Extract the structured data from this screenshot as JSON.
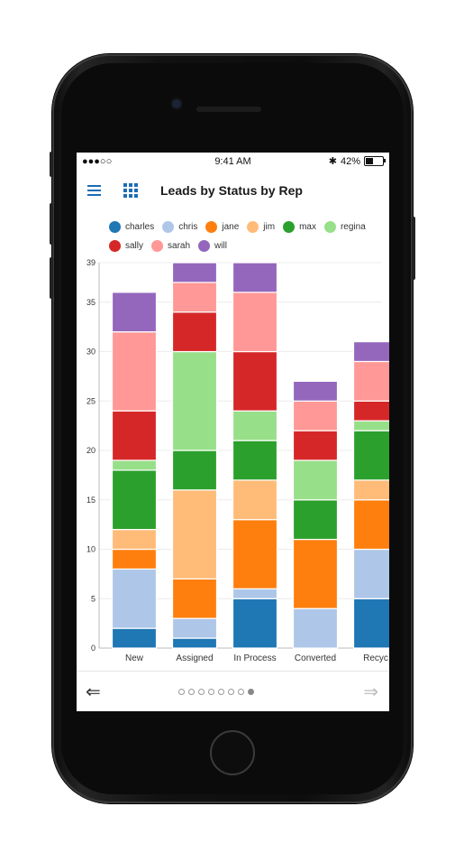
{
  "status_bar": {
    "signal": "●●●○○",
    "time": "9:41 AM",
    "bluetooth": "✱",
    "battery_text": "42%",
    "battery_level": 0.42
  },
  "header": {
    "title": "Leads by Status by Rep",
    "menu_icon": "hamburger-menu-icon",
    "apps_icon": "grid-apps-icon"
  },
  "legend": [
    {
      "name": "charles",
      "color": "#1f77b4"
    },
    {
      "name": "chris",
      "color": "#aec7e8"
    },
    {
      "name": "jane",
      "color": "#ff7f0e"
    },
    {
      "name": "jim",
      "color": "#ffbb78"
    },
    {
      "name": "max",
      "color": "#2ca02c"
    },
    {
      "name": "regina",
      "color": "#98df8a"
    },
    {
      "name": "sally",
      "color": "#d62728"
    },
    {
      "name": "sarah",
      "color": "#ff9896"
    },
    {
      "name": "will",
      "color": "#9467bd"
    }
  ],
  "chart_data": {
    "type": "bar",
    "stacked": true,
    "title": "Leads by Status by Rep",
    "categories": [
      "New",
      "Assigned",
      "In Process",
      "Converted",
      "Recyc"
    ],
    "ylim": [
      0,
      39
    ],
    "yticks": [
      0,
      5,
      10,
      15,
      20,
      25,
      30,
      35,
      39
    ],
    "grid": true,
    "legend_position": "top",
    "series": [
      {
        "name": "charles",
        "color": "#1f77b4",
        "values": [
          2,
          1,
          5,
          0,
          5
        ]
      },
      {
        "name": "chris",
        "color": "#aec7e8",
        "values": [
          6,
          2,
          1,
          4,
          5
        ]
      },
      {
        "name": "jane",
        "color": "#ff7f0e",
        "values": [
          2,
          4,
          7,
          7,
          5
        ]
      },
      {
        "name": "jim",
        "color": "#ffbb78",
        "values": [
          2,
          9,
          4,
          0,
          2
        ]
      },
      {
        "name": "max",
        "color": "#2ca02c",
        "values": [
          6,
          4,
          4,
          4,
          5
        ]
      },
      {
        "name": "regina",
        "color": "#98df8a",
        "values": [
          1,
          10,
          3,
          4,
          1
        ]
      },
      {
        "name": "sally",
        "color": "#d62728",
        "values": [
          5,
          4,
          6,
          3,
          2
        ]
      },
      {
        "name": "sarah",
        "color": "#ff9896",
        "values": [
          8,
          3,
          6,
          3,
          4
        ]
      },
      {
        "name": "will",
        "color": "#9467bd",
        "values": [
          4,
          2,
          3,
          2,
          2
        ]
      }
    ]
  },
  "pager": {
    "pages": 8,
    "active": 8
  },
  "nav": {
    "prev_icon": "arrow-left-icon",
    "prev_glyph": "⇐",
    "next_icon": "arrow-right-icon",
    "next_glyph": "⇒"
  }
}
